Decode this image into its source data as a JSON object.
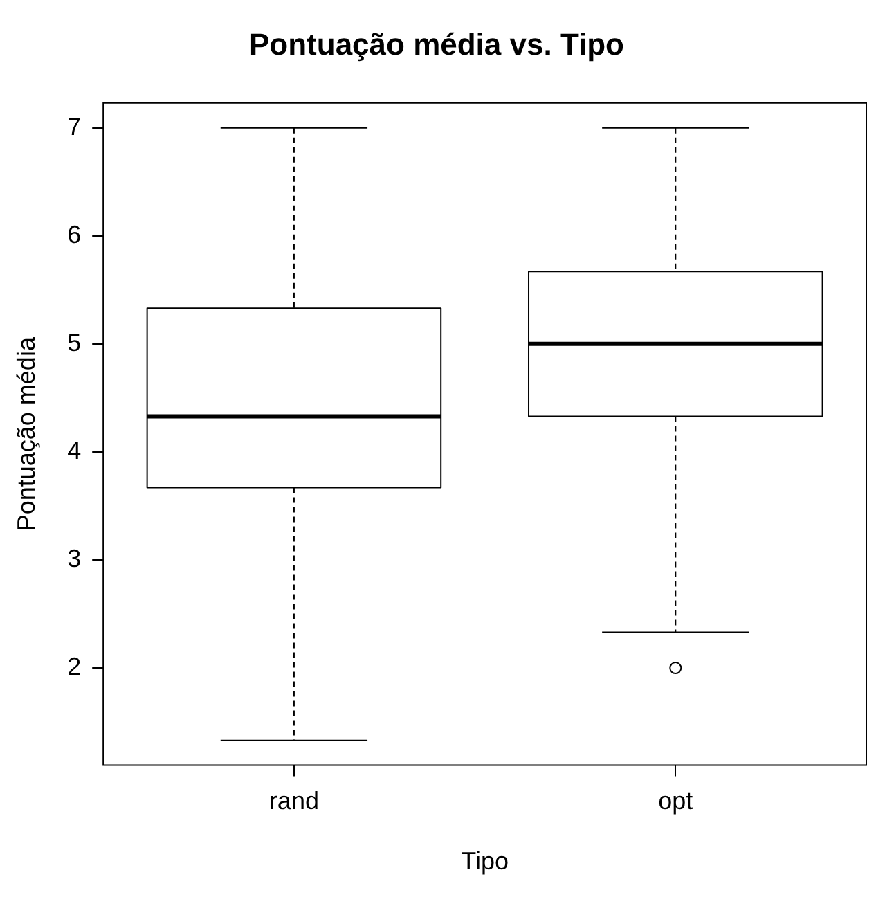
{
  "chart_data": {
    "type": "box",
    "title": "Pontuação média vs. Tipo",
    "xlabel": "Tipo",
    "ylabel": "Pontuação média",
    "categories": [
      "rand",
      "opt"
    ],
    "boxes": [
      {
        "low": 1.33,
        "q1": 3.67,
        "median": 4.33,
        "q3": 5.33,
        "high": 7
      },
      {
        "low": 2.33,
        "q1": 4.33,
        "median": 5,
        "q3": 5.67,
        "high": 7,
        "outliers": [
          2
        ]
      }
    ],
    "ylim": [
      1.1,
      7.23
    ],
    "yticks": [
      2,
      3,
      4,
      5,
      6,
      7
    ],
    "grid": false
  }
}
